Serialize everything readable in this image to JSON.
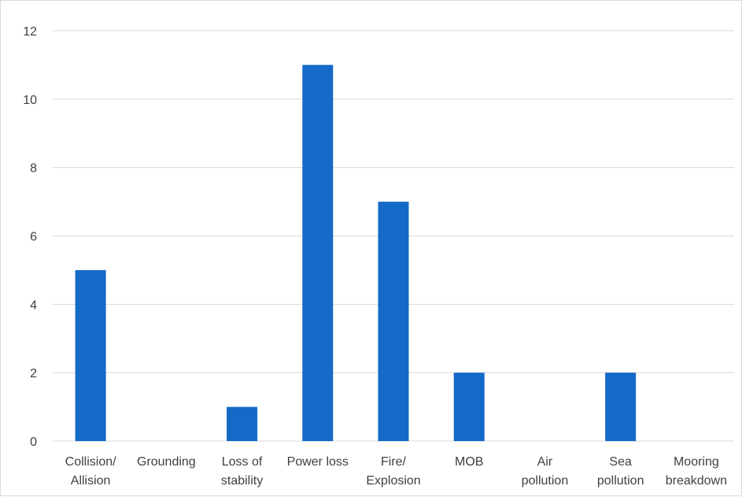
{
  "chart_data": {
    "type": "bar",
    "categories": [
      [
        "Collision/",
        "Allision"
      ],
      [
        "Grounding"
      ],
      [
        "Loss of",
        "stability"
      ],
      [
        "Power loss"
      ],
      [
        "Fire/",
        "Explosion"
      ],
      [
        "MOB"
      ],
      [
        "Air",
        "pollution"
      ],
      [
        "Sea",
        "pollution"
      ],
      [
        "Mooring",
        "breakdown"
      ]
    ],
    "values": [
      5,
      0,
      1,
      11,
      7,
      2,
      0,
      2,
      0
    ],
    "title": "",
    "xlabel": "",
    "ylabel": "",
    "ylim": [
      0,
      12
    ],
    "yticks": [
      0,
      2,
      4,
      6,
      8,
      10,
      12
    ],
    "grid": true,
    "legend": "none",
    "colors": {
      "bar": "#1569c7",
      "grid": "#d9d9d9",
      "text": "#404040"
    }
  }
}
